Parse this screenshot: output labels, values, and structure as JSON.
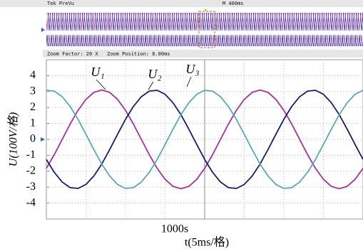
{
  "preview": {
    "brand": "Tek PreVu",
    "timebase": "M 400ms",
    "zoom_factor": "Zoom Factor: 20 X",
    "zoom_position": "Zoom Position: 8.00ms"
  },
  "chart_data": {
    "type": "line",
    "y_label": "U(100V/格)",
    "x_label": "t(5ms/格)",
    "annotation": "1000s",
    "x": [
      0,
      1,
      2,
      3,
      4,
      5,
      6,
      7,
      8,
      9,
      10,
      11,
      12,
      13,
      14,
      15,
      16,
      17,
      18,
      19,
      20,
      21,
      22,
      23,
      24,
      25,
      26,
      27,
      28,
      29,
      30,
      31,
      32,
      33,
      34,
      35,
      36,
      37,
      38,
      39,
      40
    ],
    "xlim": [
      0,
      40
    ],
    "ylim": [
      -5,
      5
    ],
    "yticks": [
      4,
      3,
      2,
      1,
      0,
      -1,
      -2,
      -3,
      -4
    ],
    "grid": true,
    "series": [
      {
        "name": "U₁",
        "color": "#a3309c",
        "values": [
          -1.82,
          -0.96,
          0,
          0.96,
          1.82,
          2.51,
          2.95,
          3.1,
          2.95,
          2.51,
          1.82,
          0.96,
          0,
          -0.96,
          -1.82,
          -2.51,
          -2.95,
          -3.1,
          -2.95,
          -2.51,
          -1.82,
          -0.96,
          0,
          0.96,
          1.82,
          2.51,
          2.95,
          3.1,
          2.95,
          2.51,
          1.82,
          0.96,
          0,
          -0.96,
          -1.82,
          -2.51,
          -2.95,
          -3.1,
          -2.95,
          -2.51,
          -1.82
        ]
      },
      {
        "name": "U₂",
        "color": "#1c1c6b",
        "values": [
          -1.26,
          -2.07,
          -2.68,
          -3.03,
          -3.08,
          -2.83,
          -2.3,
          -1.55,
          -0.64,
          0.32,
          1.26,
          2.07,
          2.68,
          3.03,
          3.08,
          2.83,
          2.3,
          1.55,
          0.64,
          -0.32,
          -1.26,
          -2.07,
          -2.68,
          -3.03,
          -3.08,
          -2.83,
          -2.3,
          -1.55,
          -0.64,
          0.32,
          1.26,
          2.07,
          2.68,
          3.03,
          3.08,
          2.83,
          2.3,
          1.55,
          0.64,
          -0.32,
          -1.26
        ]
      },
      {
        "name": "U₃",
        "color": "#5aa9b4",
        "values": [
          3.08,
          3.03,
          2.68,
          2.07,
          1.26,
          0.32,
          -0.64,
          -1.55,
          -2.3,
          -2.83,
          -3.08,
          -3.03,
          -2.68,
          -2.07,
          -1.26,
          -0.32,
          0.64,
          1.55,
          2.3,
          2.83,
          3.08,
          3.03,
          2.68,
          2.07,
          1.26,
          0.32,
          -0.64,
          -1.55,
          -2.3,
          -2.83,
          -3.08,
          -3.03,
          -2.68,
          -2.07,
          -1.26,
          -0.32,
          0.64,
          1.55,
          2.3,
          2.83,
          3.08
        ]
      }
    ]
  }
}
